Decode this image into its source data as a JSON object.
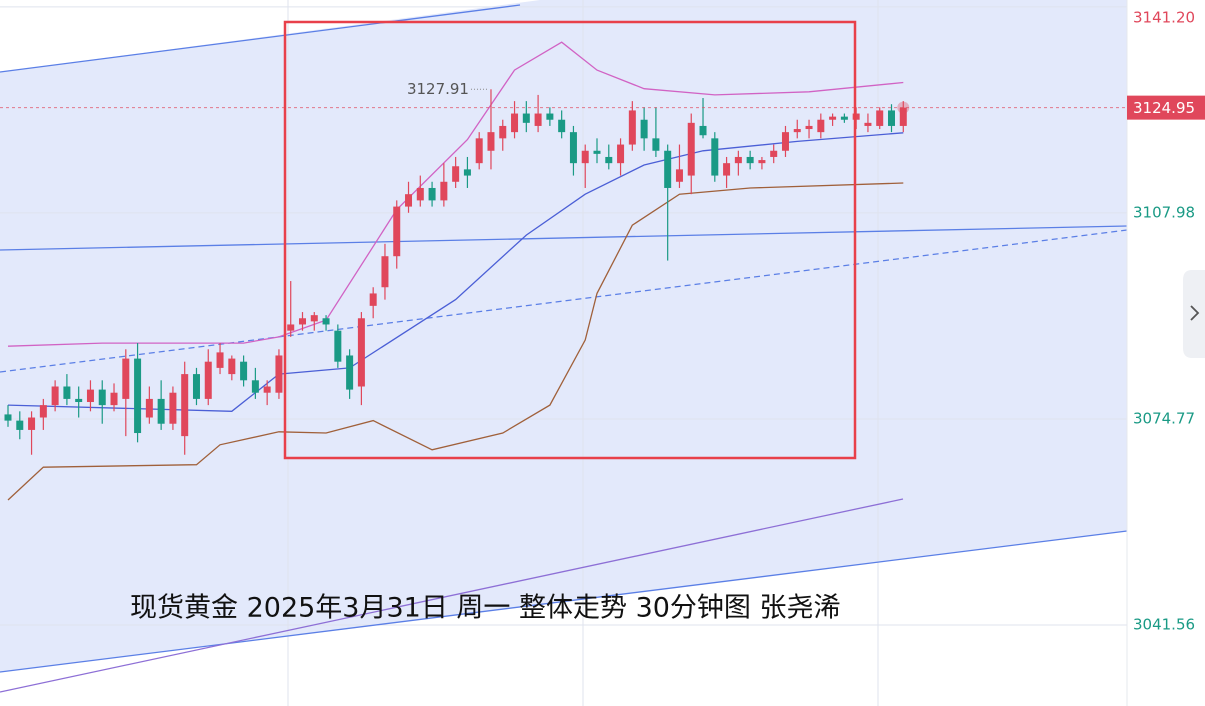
{
  "chart_data": {
    "type": "candlestick",
    "title": "现货黄金 2025年3月31日 周一 整体走势 30分钟图 张尧浠",
    "up_color": "#e0475b",
    "down_color": "#1a9a85",
    "ylim": [
      3028.5,
      3142.3
    ],
    "yticks": [
      3041.56,
      3074.77,
      3107.98,
      {
        "value": 3141.2,
        "label": "3141.20"
      }
    ],
    "candles": [
      [
        3075.5,
        3077,
        3073.5,
        3074.5
      ],
      [
        3074.5,
        3076,
        3071.5,
        3073
      ],
      [
        3073,
        3076,
        3069,
        3075
      ],
      [
        3075,
        3078,
        3073,
        3077
      ],
      [
        3077,
        3081,
        3076,
        3080
      ],
      [
        3080,
        3082,
        3077,
        3078
      ],
      [
        3078,
        3080,
        3075,
        3077.5
      ],
      [
        3077.5,
        3081,
        3076,
        3079.5
      ],
      [
        3079.5,
        3081,
        3074,
        3077
      ],
      [
        3077,
        3080.5,
        3076,
        3079
      ],
      [
        3078,
        3086,
        3072,
        3084.5
      ],
      [
        3084.5,
        3087,
        3071,
        3072.5
      ],
      [
        3075,
        3080,
        3074,
        3078
      ],
      [
        3078,
        3081,
        3073,
        3074
      ],
      [
        3074,
        3080,
        3073,
        3079
      ],
      [
        3072,
        3084,
        3069,
        3082
      ],
      [
        3082,
        3083,
        3077,
        3078
      ],
      [
        3078,
        3086,
        3077,
        3084
      ],
      [
        3083,
        3087,
        3082,
        3085.5
      ],
      [
        3082,
        3085,
        3081,
        3084.5
      ],
      [
        3084,
        3085,
        3080,
        3081
      ],
      [
        3081,
        3083,
        3078,
        3079
      ],
      [
        3079,
        3081,
        3077,
        3080
      ],
      [
        3079,
        3086,
        3078,
        3085
      ],
      [
        3089,
        3097,
        3088,
        3090
      ],
      [
        3090,
        3092,
        3089,
        3091
      ],
      [
        3090.5,
        3092,
        3089,
        3091.5
      ],
      [
        3091,
        3091.5,
        3089,
        3090
      ],
      [
        3089,
        3090,
        3083,
        3084
      ],
      [
        3085,
        3086,
        3078,
        3079.5
      ],
      [
        3080,
        3092,
        3077,
        3091
      ],
      [
        3093,
        3096,
        3091,
        3095
      ],
      [
        3096,
        3103,
        3094,
        3101
      ],
      [
        3101,
        3110,
        3099,
        3109
      ],
      [
        3109,
        3113,
        3108,
        3111
      ],
      [
        3110,
        3114,
        3109,
        3112
      ],
      [
        3112,
        3113,
        3109,
        3110
      ],
      [
        3110,
        3116,
        3109,
        3113
      ],
      [
        3113,
        3117,
        3112,
        3115.5
      ],
      [
        3115,
        3117,
        3112,
        3114
      ],
      [
        3116,
        3121,
        3115,
        3120
      ],
      [
        3118,
        3127.91,
        3115,
        3121
      ],
      [
        3120,
        3123,
        3118,
        3122
      ],
      [
        3121,
        3126,
        3120,
        3124
      ],
      [
        3124,
        3126,
        3121,
        3122.5
      ],
      [
        3122,
        3127,
        3121,
        3124
      ],
      [
        3124,
        3125,
        3122,
        3123
      ],
      [
        3123,
        3124.5,
        3120,
        3121
      ],
      [
        3121,
        3122,
        3114,
        3116
      ],
      [
        3116,
        3119,
        3112,
        3118
      ],
      [
        3118,
        3120,
        3116,
        3117.5
      ],
      [
        3117,
        3119,
        3115,
        3116
      ],
      [
        3116,
        3120,
        3114,
        3119
      ],
      [
        3119,
        3126,
        3118,
        3124.5
      ],
      [
        3123,
        3125,
        3118,
        3120
      ],
      [
        3120,
        3125,
        3117,
        3118
      ],
      [
        3118,
        3119,
        3100.3,
        3112
      ],
      [
        3113,
        3119,
        3112,
        3115
      ],
      [
        3114,
        3124,
        3111,
        3122.5
      ],
      [
        3122,
        3126.5,
        3120,
        3120.5
      ],
      [
        3120,
        3121,
        3113,
        3114
      ],
      [
        3114,
        3117,
        3112,
        3116
      ],
      [
        3116,
        3118,
        3114,
        3117
      ],
      [
        3117,
        3118,
        3115,
        3116
      ],
      [
        3116,
        3117,
        3115,
        3116.5
      ],
      [
        3117,
        3119,
        3116,
        3118
      ],
      [
        3118,
        3122,
        3117,
        3121
      ],
      [
        3121,
        3123,
        3120,
        3121.5
      ],
      [
        3121.5,
        3123,
        3120,
        3122
      ],
      [
        3121,
        3124,
        3120,
        3123
      ],
      [
        3123,
        3124,
        3122,
        3123.5
      ],
      [
        3123.5,
        3124,
        3122.5,
        3123
      ],
      [
        3123,
        3125,
        3121.5,
        3124
      ],
      [
        3122,
        3124,
        3121,
        3122.5
      ],
      [
        3122,
        3125,
        3121.5,
        3124.5
      ],
      [
        3124.5,
        3125.5,
        3121,
        3122
      ],
      [
        3122,
        3126,
        3121,
        3124.95
      ]
    ],
    "overlays": [
      {
        "color": "#d163c4",
        "x": [
          0,
          8,
          20,
          23,
          27,
          33,
          39,
          43,
          47,
          50,
          54,
          60,
          68,
          76
        ],
        "values": [
          3086.5,
          3087,
          3087,
          3088,
          3090.7,
          3108.5,
          3119.8,
          3131,
          3135.5,
          3131,
          3128,
          3127,
          3127.5,
          3129
        ]
      },
      {
        "color": "#a0603a",
        "x": [
          0,
          3,
          16,
          18,
          23,
          27,
          31,
          36,
          42,
          46,
          49,
          50,
          53,
          57,
          63,
          76
        ],
        "values": [
          3061.7,
          3067,
          3067.4,
          3070.6,
          3072.7,
          3072.5,
          3074.5,
          3069.8,
          3072.5,
          3077,
          3087.5,
          3095,
          3106,
          3111,
          3112,
          3112.8
        ]
      },
      {
        "color": "#4b5fd6",
        "x": [
          0,
          19,
          23,
          29,
          38,
          44,
          49,
          54,
          59,
          67,
          76
        ],
        "values": [
          3077,
          3076,
          3082,
          3083,
          3094,
          3104.4,
          3111,
          3115.7,
          3118,
          3119.5,
          3120.9
        ]
      }
    ]
  }
}
